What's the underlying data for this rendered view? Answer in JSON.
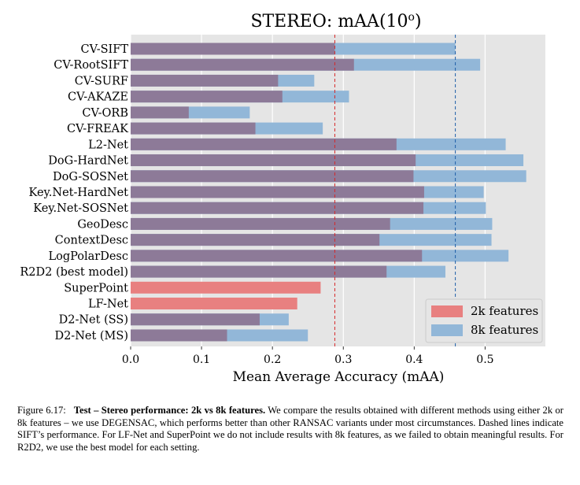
{
  "chart_data": {
    "type": "bar",
    "orientation": "horizontal",
    "title": "STEREO: mAA(10",
    "title_superscript": "o",
    "title_suffix": ")",
    "xlabel": "Mean Average Accuracy (mAA)",
    "xlim": [
      0,
      0.585
    ],
    "xticks": [
      "0.0",
      "0.1",
      "0.2",
      "0.3",
      "0.4",
      "0.5"
    ],
    "xtick_values": [
      0,
      0.1,
      0.2,
      0.3,
      0.4,
      0.5
    ],
    "grid": true,
    "legend_position": "bottom-right",
    "categories": [
      "CV-SIFT",
      "CV-RootSIFT",
      "CV-SURF",
      "CV-AKAZE",
      "CV-ORB",
      "CV-FREAK",
      "L2-Net",
      "DoG-HardNet",
      "DoG-SOSNet",
      "Key.Net-HardNet",
      "Key.Net-SOSNet",
      "GeoDesc",
      "ContextDesc",
      "LogPolarDesc",
      "R2D2 (best model)",
      "SuperPoint",
      "LF-Net",
      "D2-Net (SS)",
      "D2-Net (MS)"
    ],
    "series": [
      {
        "name": "2k features",
        "color": "#e88080",
        "values": [
          0.288,
          0.315,
          0.208,
          0.214,
          0.082,
          0.176,
          0.375,
          0.402,
          0.399,
          0.414,
          0.413,
          0.366,
          0.351,
          0.411,
          0.361,
          0.268,
          0.235,
          0.182,
          0.136
        ]
      },
      {
        "name": "8k features",
        "color": "#92b7d8",
        "values": [
          0.458,
          0.493,
          0.259,
          0.308,
          0.168,
          0.271,
          0.529,
          0.554,
          0.558,
          0.498,
          0.501,
          0.51,
          0.509,
          0.533,
          0.444,
          null,
          null,
          0.223,
          0.25
        ]
      }
    ],
    "overlap_color": "#8d7a98",
    "reference_lines": [
      {
        "value": 0.288,
        "color": "#d62728",
        "style": "dashed"
      },
      {
        "value": 0.458,
        "color": "#1f5fa8",
        "style": "dashed"
      }
    ]
  },
  "caption": {
    "figure_label": "Figure 6.17:",
    "bold_text": "Test – Stereo performance: 2k vs 8k features.",
    "body_text": "We compare the results obtained with different methods using either 2k or 8k features – we use DEGENSAC, which performs better than other RANSAC variants under most circumstances. Dashed lines indicate SIFT’s performance. For LF-Net and SuperPoint we do not include results with 8k features, as we failed to obtain meaningful results. For R2D2, we use the best model for each setting."
  }
}
